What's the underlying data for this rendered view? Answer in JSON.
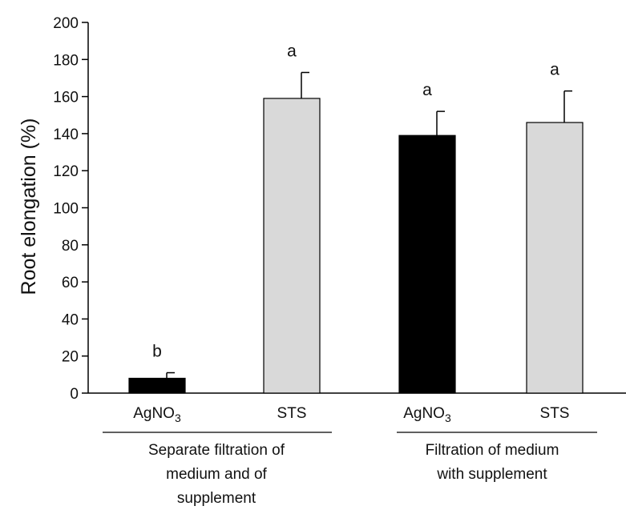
{
  "chart_data": {
    "type": "bar",
    "ylabel": "Root elongation (%)",
    "ylim": [
      0,
      200
    ],
    "yticks": [
      0,
      20,
      40,
      60,
      80,
      100,
      120,
      140,
      160,
      180,
      200
    ],
    "grid": false,
    "bars": [
      {
        "category": "AgNO3",
        "label_main": "AgNO",
        "label_sub": "3",
        "value": 8,
        "error": 3,
        "significance": "b",
        "color": "#000000",
        "group": 0
      },
      {
        "category": "STS",
        "label_main": "STS",
        "label_sub": "",
        "value": 159,
        "error": 14,
        "significance": "a",
        "color": "#d9d9d9",
        "group": 0
      },
      {
        "category": "AgNO3",
        "label_main": "AgNO",
        "label_sub": "3",
        "value": 139,
        "error": 13,
        "significance": "a",
        "color": "#000000",
        "group": 1
      },
      {
        "category": "STS",
        "label_main": "STS",
        "label_sub": "",
        "value": 146,
        "error": 17,
        "significance": "a",
        "color": "#d9d9d9",
        "group": 1
      }
    ],
    "groups": [
      {
        "lines": [
          "Separate filtration of",
          "medium and of",
          "supplement"
        ]
      },
      {
        "lines": [
          "Filtration of medium",
          "with supplement"
        ]
      }
    ]
  }
}
